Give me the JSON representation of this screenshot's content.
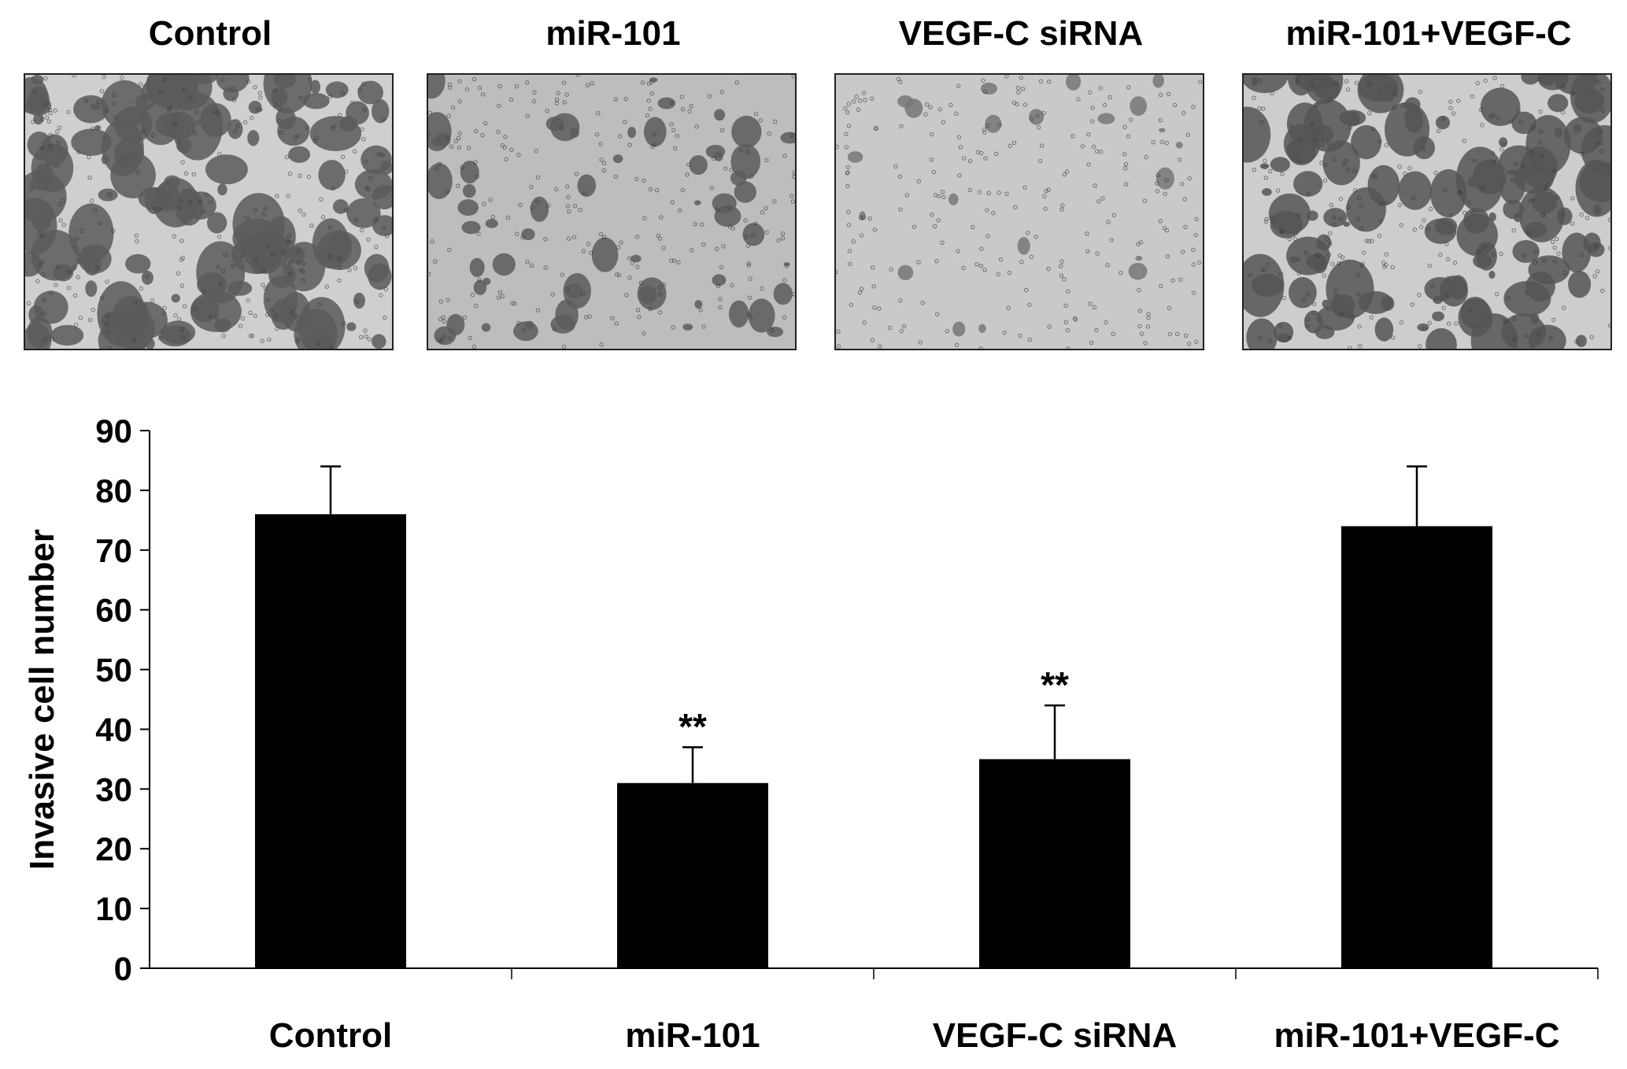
{
  "panels": [
    {
      "label": "Control",
      "bg": "#cfcfcf",
      "blob": "#5a5a5a",
      "density": 0.9
    },
    {
      "label": "miR-101",
      "bg": "#bdbdbd",
      "blob": "#5c5c5c",
      "density": 0.35
    },
    {
      "label": "VEGF-C siRNA",
      "bg": "#c9c9c9",
      "blob": "#777777",
      "density": 0.08
    },
    {
      "label": "miR-101+VEGF-C",
      "bg": "#cdcdcd",
      "blob": "#555555",
      "density": 0.8
    }
  ],
  "chart_data": {
    "type": "bar",
    "categories": [
      "Control",
      "miR-101",
      "VEGF-C siRNA",
      "miR-101+VEGF-C"
    ],
    "values": [
      76,
      31,
      35,
      74
    ],
    "error": [
      8,
      6,
      9,
      10
    ],
    "annotations": [
      "",
      "**",
      "**",
      ""
    ],
    "ylabel": "Invasive cell number",
    "xlabel": "",
    "ylim": [
      0,
      90
    ],
    "yticks": [
      0,
      10,
      20,
      30,
      40,
      50,
      60,
      70,
      80,
      90
    ],
    "bar_color": "#000000",
    "grid": false
  }
}
